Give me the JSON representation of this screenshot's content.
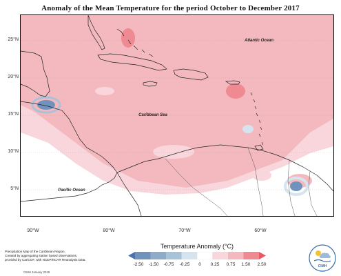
{
  "title": "Anomaly of the Mean Temperature for the period October to December 2017",
  "map": {
    "region": "Caribbean",
    "lat_ticks": [
      "25°N",
      "20°N",
      "15°N",
      "10°N",
      "5°N"
    ],
    "lon_ticks": [
      "90°W",
      "80°W",
      "70°W",
      "60°W"
    ],
    "labels": {
      "atlantic": "Atlantic Ocean",
      "caribbean": "Caribbean Sea",
      "pacific": "Pacific Ocean"
    },
    "colors": {
      "strong_positive": "#f08a92",
      "positive": "#f4b8bf",
      "weak_positive": "#f8d6dc",
      "neutral": "#ffffff",
      "weak_negative": "#d6e4ef",
      "negative": "#a8c2d8",
      "strong_negative": "#7093bd"
    }
  },
  "legend": {
    "title": "Temperature Anomaly (°C)",
    "ticks": [
      "-2.50",
      "-1.50",
      "-0.75",
      "-0.25",
      "0",
      "0.25",
      "0.75",
      "1.50",
      "2.50"
    ],
    "colors": [
      "#4d6fae",
      "#7093bd",
      "#a8c2d8",
      "#d6e4ef",
      "#ffffff",
      "#f8d6dc",
      "#f4b8bf",
      "#f08a92",
      "#e85a66"
    ]
  },
  "footnote": {
    "line1": "Precipitation Map of the Caribbean Region.",
    "line2": "Created by aggregating station based observations,",
    "line3": "provided by CariCOF, with NCEP/NCAR Reanalysis Data."
  },
  "credit": "CIMH January 2018",
  "logo_text": "CIMH"
}
